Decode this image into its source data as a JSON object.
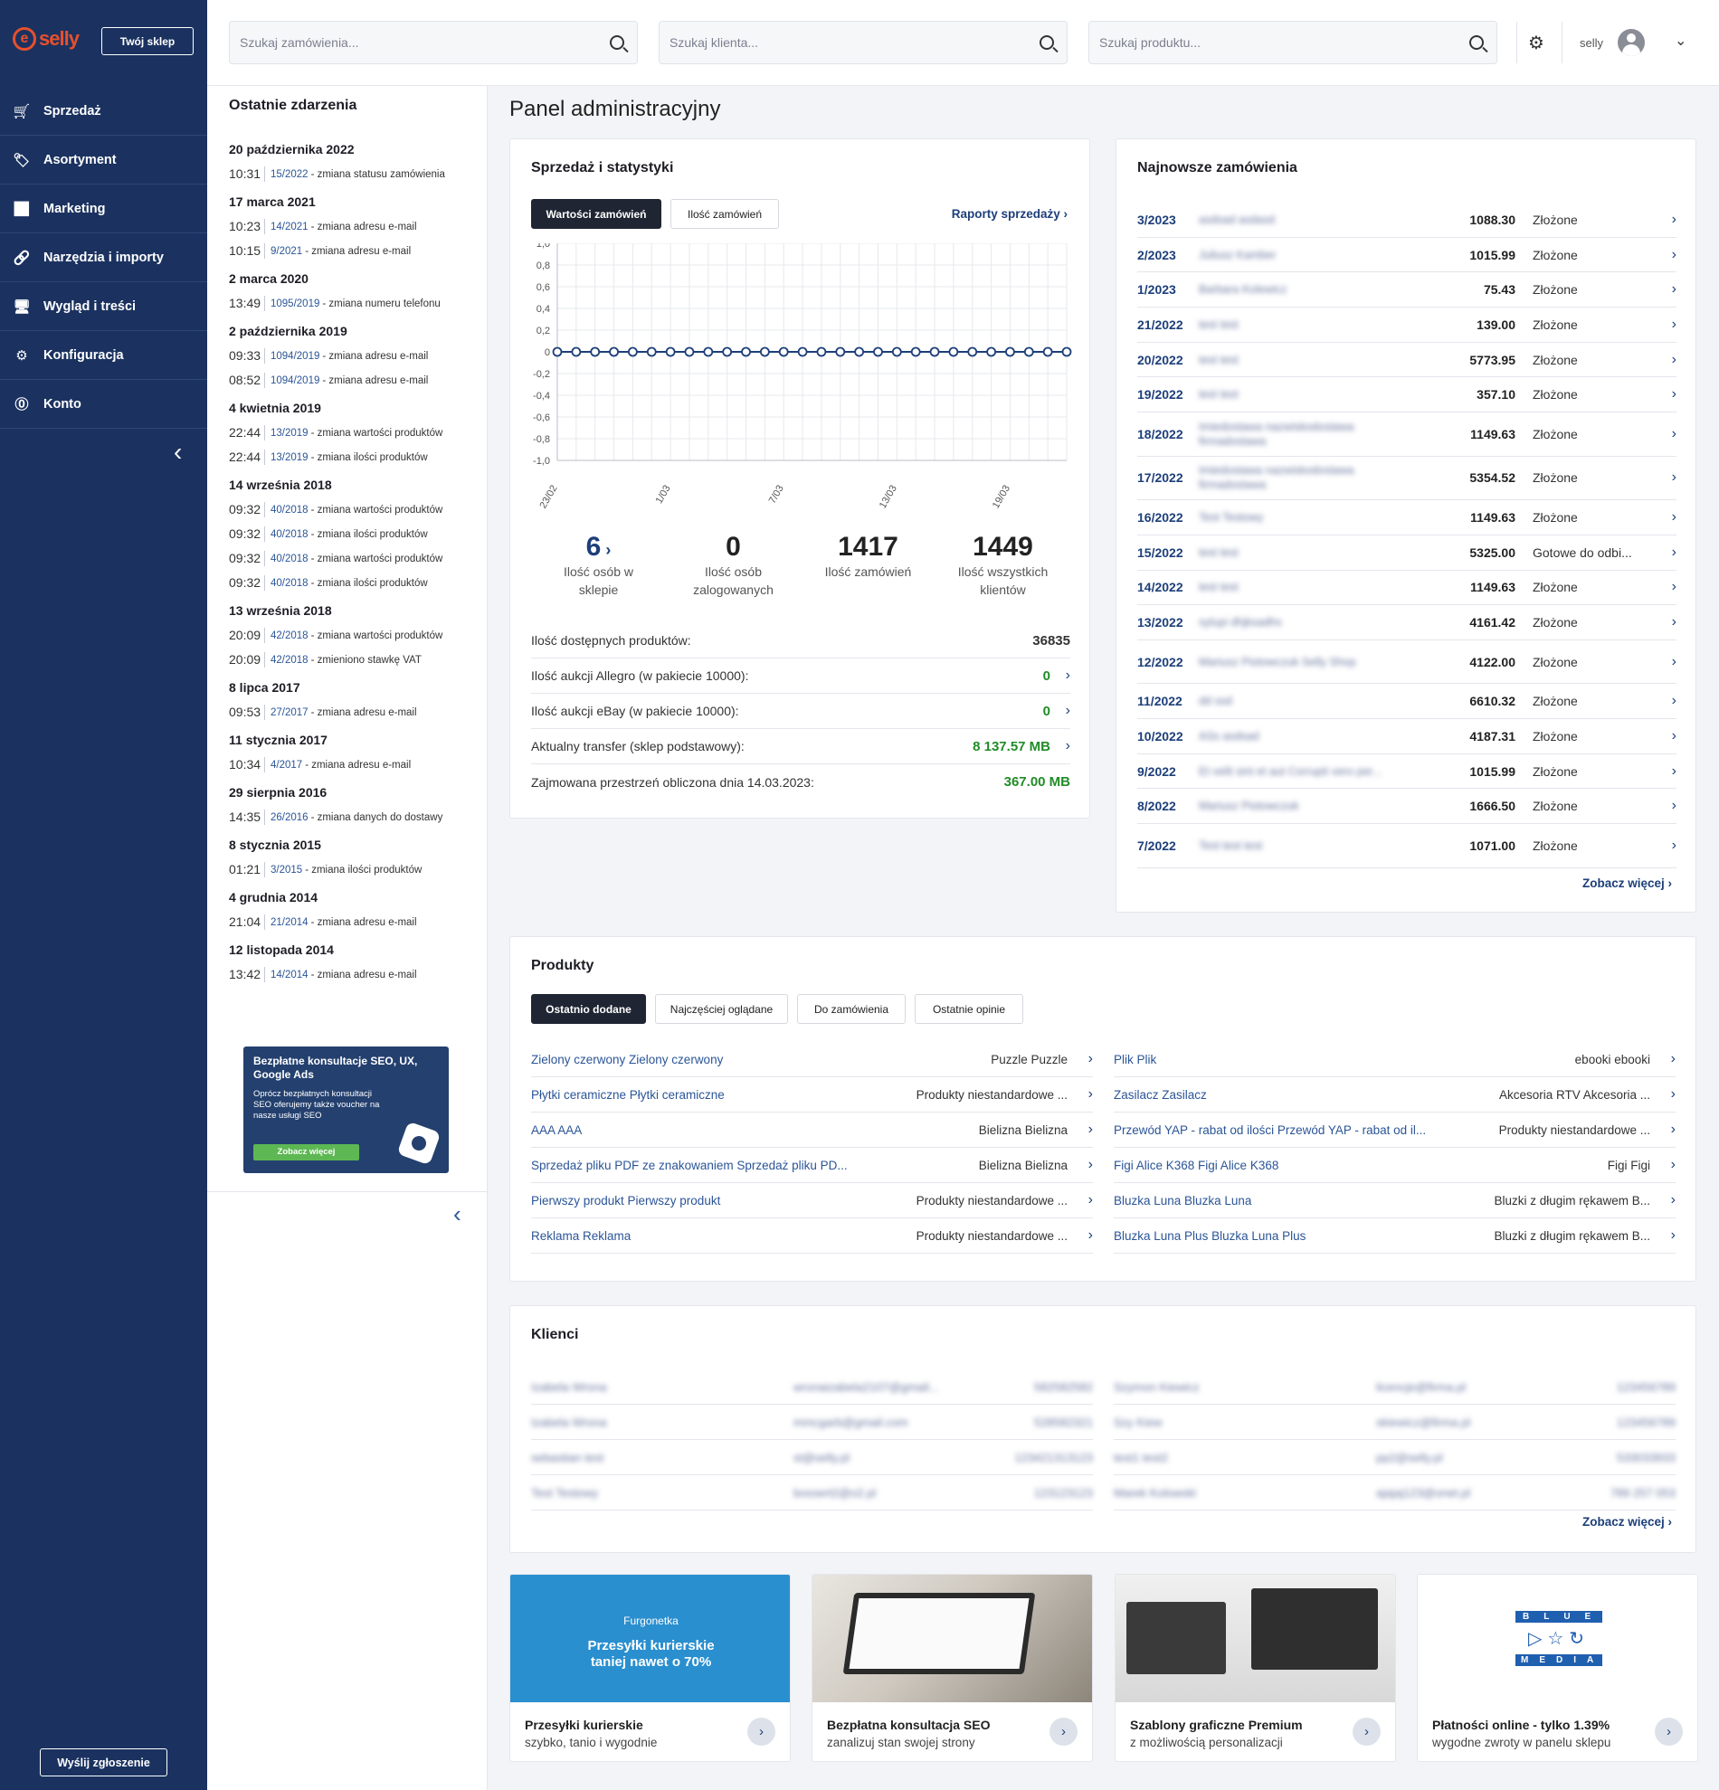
{
  "sidebar": {
    "logo": "selly",
    "shop_button": "Twój sklep",
    "items": [
      {
        "label": "Sprzedaż",
        "icon": "cart-icon"
      },
      {
        "label": "Asortyment",
        "icon": "tag-icon"
      },
      {
        "label": "Marketing",
        "icon": "chart-line-icon"
      },
      {
        "label": "Narzędzia i importy",
        "icon": "link-icon"
      },
      {
        "label": "Wygląd i treści",
        "icon": "monitor-icon"
      },
      {
        "label": "Konfiguracja",
        "icon": "gear-icon"
      },
      {
        "label": "Konto",
        "icon": "account-icon"
      }
    ],
    "report_button": "Wyślij zgłoszenie"
  },
  "header": {
    "search_orders": "Szukaj zamówienia...",
    "search_clients": "Szukaj klienta...",
    "search_products": "Szukaj produktu...",
    "user": "selly"
  },
  "events": {
    "title": "Ostatnie zdarzenia",
    "groups": [
      {
        "date": "20 października 2022",
        "items": [
          {
            "time": "10:31",
            "ref": "15/2022",
            "desc": "- zmiana statusu zamówienia"
          }
        ]
      },
      {
        "date": "17 marca 2021",
        "items": [
          {
            "time": "10:23",
            "ref": "14/2021",
            "desc": "- zmiana adresu e-mail"
          },
          {
            "time": "10:15",
            "ref": "9/2021",
            "desc": "- zmiana adresu e-mail"
          }
        ]
      },
      {
        "date": "2 marca 2020",
        "items": [
          {
            "time": "13:49",
            "ref": "1095/2019",
            "desc": "- zmiana numeru telefonu"
          }
        ]
      },
      {
        "date": "2 października 2019",
        "items": [
          {
            "time": "09:33",
            "ref": "1094/2019",
            "desc": "- zmiana adresu e-mail"
          },
          {
            "time": "08:52",
            "ref": "1094/2019",
            "desc": "- zmiana adresu e-mail"
          }
        ]
      },
      {
        "date": "4 kwietnia 2019",
        "items": [
          {
            "time": "22:44",
            "ref": "13/2019",
            "desc": "- zmiana wartości produktów"
          },
          {
            "time": "22:44",
            "ref": "13/2019",
            "desc": "- zmiana ilości produktów"
          }
        ]
      },
      {
        "date": "14 września 2018",
        "items": [
          {
            "time": "09:32",
            "ref": "40/2018",
            "desc": "- zmiana wartości produktów"
          },
          {
            "time": "09:32",
            "ref": "40/2018",
            "desc": "- zmiana ilości produktów"
          },
          {
            "time": "09:32",
            "ref": "40/2018",
            "desc": "- zmiana wartości produktów"
          },
          {
            "time": "09:32",
            "ref": "40/2018",
            "desc": "- zmiana ilości produktów"
          }
        ]
      },
      {
        "date": "13 września 2018",
        "items": [
          {
            "time": "20:09",
            "ref": "42/2018",
            "desc": "- zmiana wartości produktów"
          },
          {
            "time": "20:09",
            "ref": "42/2018",
            "desc": "- zmieniono stawkę VAT"
          }
        ]
      },
      {
        "date": "8 lipca 2017",
        "items": [
          {
            "time": "09:53",
            "ref": "27/2017",
            "desc": "- zmiana adresu e-mail"
          }
        ]
      },
      {
        "date": "11 stycznia 2017",
        "items": [
          {
            "time": "10:34",
            "ref": "4/2017",
            "desc": "- zmiana adresu e-mail"
          }
        ]
      },
      {
        "date": "29 sierpnia 2016",
        "items": [
          {
            "time": "14:35",
            "ref": "26/2016",
            "desc": "- zmiana danych do dostawy"
          }
        ]
      },
      {
        "date": "8 stycznia 2015",
        "items": [
          {
            "time": "01:21",
            "ref": "3/2015",
            "desc": "- zmiana ilości produktów"
          }
        ]
      },
      {
        "date": "4 grudnia 2014",
        "items": [
          {
            "time": "21:04",
            "ref": "21/2014",
            "desc": "- zmiana adresu e-mail"
          }
        ]
      },
      {
        "date": "12 listopada 2014",
        "items": [
          {
            "time": "13:42",
            "ref": "14/2014",
            "desc": "- zmiana adresu e-mail"
          }
        ]
      }
    ],
    "promo": {
      "title": "Bezpłatne konsultacje SEO, UX, Google Ads",
      "text": "Oprócz bezpłatnych konsultacji SEO oferujemy także voucher na nasze usługi SEO",
      "button": "Zobacz więcej"
    }
  },
  "page_title": "Panel administracyjny",
  "sales": {
    "title": "Sprzedaż i statystyki",
    "tab_values": "Wartości zamówień",
    "tab_counts": "Ilość zamówień",
    "reports_link": "Raporty sprzedaży",
    "stats": [
      {
        "value": "6",
        "label": "Ilość osób w sklepie"
      },
      {
        "value": "0",
        "label": "Ilość osób zalogowanych"
      },
      {
        "value": "1417",
        "label": "Ilość zamówień"
      },
      {
        "value": "1449",
        "label": "Ilość wszystkich klientów"
      }
    ],
    "info": [
      {
        "label": "Ilość dostępnych produktów:",
        "value": "36835"
      },
      {
        "label": "Ilość aukcji Allegro (w pakiecie 10000):",
        "value": "0"
      },
      {
        "label": "Ilość aukcji eBay (w pakiecie 10000):",
        "value": "0"
      },
      {
        "label": "Aktualny transfer (sklep podstawowy):",
        "value": "8 137.57 MB"
      },
      {
        "label": "Zajmowana przestrzeń obliczona dnia 14.03.2023:",
        "value": "367.00 MB"
      }
    ]
  },
  "chart_data": {
    "type": "line",
    "x_tick_labels": [
      "23/02",
      "1/03",
      "7/03",
      "13/03",
      "19/03"
    ],
    "y_ticks": [
      "1,0",
      "0,8",
      "0,6",
      "0,4",
      "0,2",
      "0",
      "-0,2",
      "-0,4",
      "-0,6",
      "-0,8",
      "-1,0"
    ],
    "ylim": [
      -1,
      1
    ],
    "grid": true,
    "points_count": 28,
    "values": [
      0,
      0,
      0,
      0,
      0,
      0,
      0,
      0,
      0,
      0,
      0,
      0,
      0,
      0,
      0,
      0,
      0,
      0,
      0,
      0,
      0,
      0,
      0,
      0,
      0,
      0,
      0,
      0
    ]
  },
  "orders": {
    "title": "Najnowsze zamówienia",
    "rows": [
      {
        "no": "3/2023",
        "name": "asdsad asdasd",
        "amount": "1088.30",
        "status": "Złożone"
      },
      {
        "no": "2/2023",
        "name": "Juliusz Kamber",
        "amount": "1015.99",
        "status": "Złożone"
      },
      {
        "no": "1/2023",
        "name": "Barbara Kolewicz",
        "amount": "75.43",
        "status": "Złożone"
      },
      {
        "no": "21/2022",
        "name": "test test",
        "amount": "139.00",
        "status": "Złożone"
      },
      {
        "no": "20/2022",
        "name": "test test",
        "amount": "5773.95",
        "status": "Złożone"
      },
      {
        "no": "19/2022",
        "name": "test test",
        "amount": "357.10",
        "status": "Złożone"
      },
      {
        "no": "18/2022",
        "name": "Imiedostawa nazwiskodostawa firmadostawa",
        "amount": "1149.63",
        "status": "Złożone"
      },
      {
        "no": "17/2022",
        "name": "Imiedostawa nazwiskodostawa firmadostawa",
        "amount": "5354.52",
        "status": "Złożone"
      },
      {
        "no": "16/2022",
        "name": "Test Testowy",
        "amount": "1149.63",
        "status": "Złożone"
      },
      {
        "no": "15/2022",
        "name": "test test",
        "amount": "5325.00",
        "status": "Gotowe do odbi..."
      },
      {
        "no": "14/2022",
        "name": "test test",
        "amount": "1149.63",
        "status": "Złożone"
      },
      {
        "no": "13/2022",
        "name": "sylupi dhjksadhs",
        "amount": "4161.42",
        "status": "Złożone"
      },
      {
        "no": "12/2022",
        "name": "Mariusz Piotowczuk Selly Shop",
        "amount": "4122.00",
        "status": "Złożone"
      },
      {
        "no": "11/2022",
        "name": "dd ssd",
        "amount": "6610.32",
        "status": "Złożone"
      },
      {
        "no": "10/2022",
        "name": "ASs asdsad",
        "amount": "4187.31",
        "status": "Złożone"
      },
      {
        "no": "9/2022",
        "name": "Et velit sint et aut Corrupti vero per...",
        "amount": "1015.99",
        "status": "Złożone"
      },
      {
        "no": "8/2022",
        "name": "Mariusz Piotowczuk",
        "amount": "1666.50",
        "status": "Złożone"
      },
      {
        "no": "7/2022",
        "name": "Test test test",
        "amount": "1071.00",
        "status": "Złożone"
      }
    ],
    "more": "Zobacz więcej"
  },
  "products": {
    "title": "Produkty",
    "tabs": [
      "Ostatnio dodane",
      "Najczęściej oglądane",
      "Do zamówienia",
      "Ostatnie opinie"
    ],
    "left": [
      {
        "name": "Zielony czerwony Zielony czerwony",
        "cat": "Puzzle Puzzle"
      },
      {
        "name": "Płytki ceramiczne Płytki ceramiczne",
        "cat": "Produkty niestandardowe ..."
      },
      {
        "name": "AAA AAA",
        "cat": "Bielizna Bielizna"
      },
      {
        "name": "Sprzedaż pliku PDF ze znakowaniem Sprzedaż pliku PD...",
        "cat": "Bielizna Bielizna"
      },
      {
        "name": "Pierwszy produkt Pierwszy produkt",
        "cat": "Produkty niestandardowe ..."
      },
      {
        "name": "Reklama Reklama",
        "cat": "Produkty niestandardowe ..."
      }
    ],
    "right": [
      {
        "name": "Plik Plik",
        "cat": "ebooki ebooki"
      },
      {
        "name": "Zasilacz Zasilacz",
        "cat": "Akcesoria RTV Akcesoria ..."
      },
      {
        "name": "Przewód YAP - rabat od ilości Przewód YAP - rabat od il...",
        "cat": "Produkty niestandardowe ..."
      },
      {
        "name": "Figi Alice K368 Figi Alice K368",
        "cat": "Figi Figi"
      },
      {
        "name": "Bluzka Luna Bluzka Luna",
        "cat": "Bluzki z długim rękawem B..."
      },
      {
        "name": "Bluzka Luna Plus Bluzka Luna Plus",
        "cat": "Bluzki z długim rękawem B..."
      }
    ]
  },
  "clients": {
    "title": "Klienci",
    "left": [
      {
        "name": "Izabela Wrona",
        "email": "wronaizabela2107@gmail...",
        "phone": "582582582"
      },
      {
        "name": "Izabela Wrona",
        "email": "mmcgarb@gmail.com",
        "phone": "528582321"
      },
      {
        "name": "sebastian test",
        "email": "st@selly.pl",
        "phone": "123421313123"
      },
      {
        "name": "Test Testowy",
        "email": "bossert2@o2.pl",
        "phone": "123123123"
      }
    ],
    "right": [
      {
        "name": "Szymon Kiewicz",
        "email": "licencje@firma.pl",
        "phone": "123456789"
      },
      {
        "name": "Szy Kiew",
        "email": "skiewicz@firma.pl",
        "phone": "123456789"
      },
      {
        "name": "test1 test2",
        "email": "pp2@selly.pl",
        "phone": "533033933"
      },
      {
        "name": "Marek Kolowski",
        "email": "ajajaj123@onet.pl",
        "phone": "789 257 053"
      }
    ],
    "more": "Zobacz więcej"
  },
  "tiles": [
    {
      "title": "Przesyłki kurierskie",
      "subtitle": "szybko, tanio i wygodnie",
      "brand": "Furgonetka",
      "banner": "Przesyłki kurierskie taniej nawet o 70%"
    },
    {
      "title": "Bezpłatna konsultacja SEO",
      "subtitle": "zanalizuj stan swojej strony"
    },
    {
      "title": "Szablony graficzne Premium",
      "subtitle": "z możliwością personalizacji"
    },
    {
      "title": "Płatności online - tylko 1.39%",
      "subtitle": "wygodne zwroty w panelu sklepu",
      "logo_top": "BLUE",
      "logo_bottom": "MEDIA"
    }
  ]
}
